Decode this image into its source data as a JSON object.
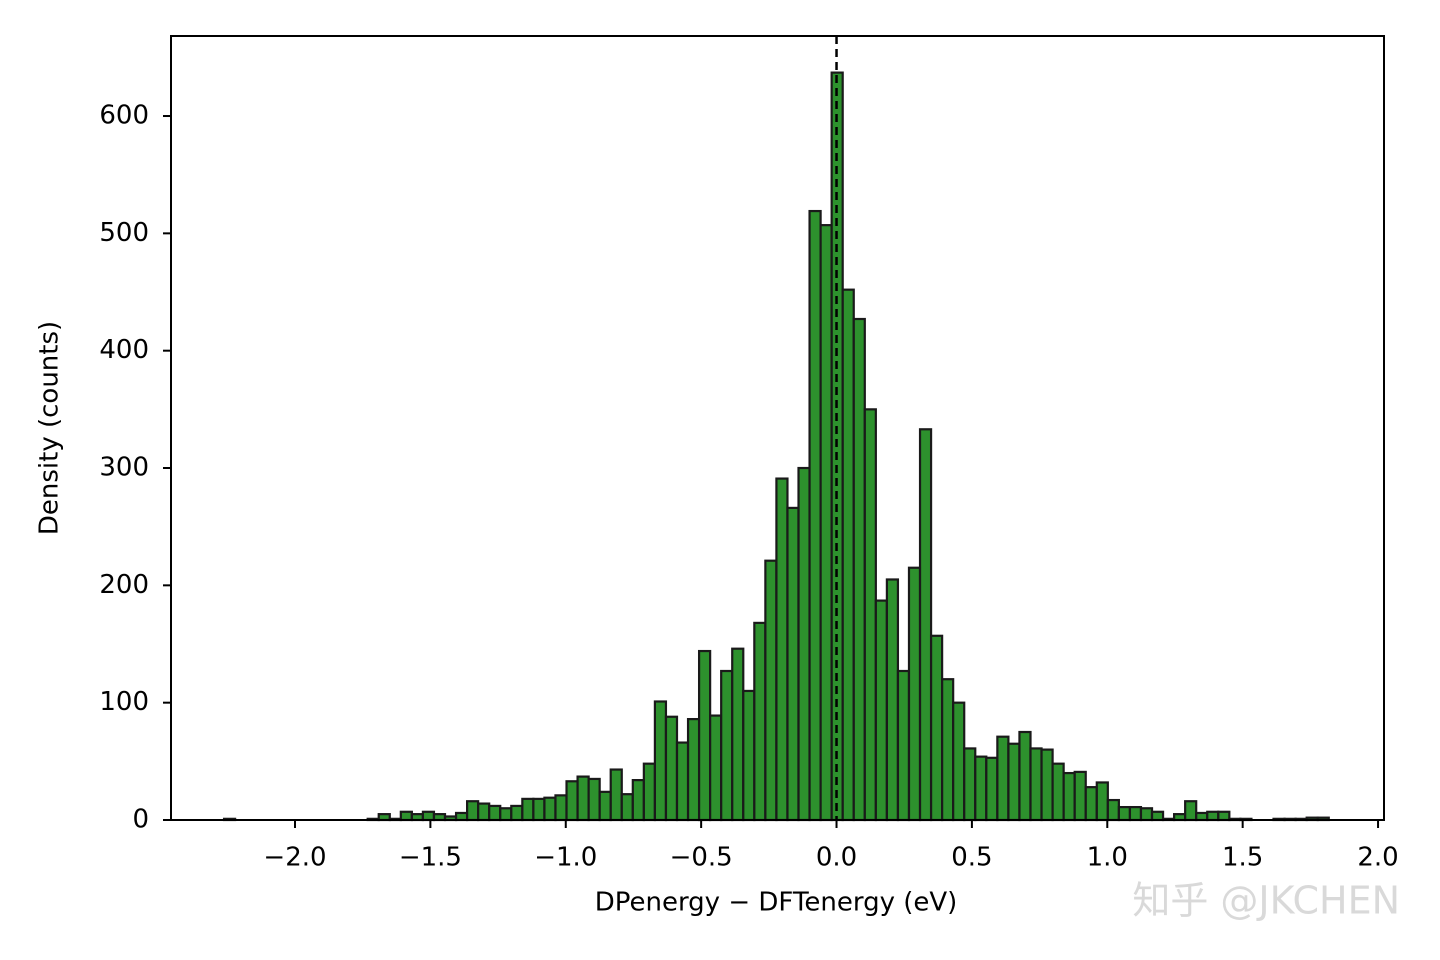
{
  "chart_data": {
    "type": "histogram",
    "xlabel": "DPenergy − DFTenergy (eV)",
    "ylabel": "Density (counts)",
    "watermark": "知乎 @JKCHEN",
    "color": "#228b22",
    "edgecolor": "#1a1a1a",
    "reference_line": {
      "x": 0,
      "style": "dashed",
      "color": "#000000"
    },
    "bins": [
      -2.262,
      -2.2212,
      -2.1804,
      -2.1396,
      -2.0988,
      -2.058,
      -2.0172,
      -1.9764,
      -1.9356,
      -1.8948,
      -1.854,
      -1.8132,
      -1.7724,
      -1.7316,
      -1.6908,
      -1.65,
      -1.6092,
      -1.5684,
      -1.5276,
      -1.4868,
      -1.446,
      -1.4052,
      -1.3644,
      -1.3236,
      -1.2828,
      -1.242,
      -1.2012,
      -1.1604,
      -1.1196,
      -1.0788,
      -1.038,
      -0.9972,
      -0.9564,
      -0.9156,
      -0.8748,
      -0.834,
      -0.7932,
      -0.7524,
      -0.7116,
      -0.6708,
      -0.63,
      -0.5892,
      -0.5484,
      -0.5076,
      -0.4668,
      -0.426,
      -0.3852,
      -0.3444,
      -0.3036,
      -0.2628,
      -0.222,
      -0.1812,
      -0.1404,
      -0.0996,
      -0.0588,
      -0.018,
      0.0228,
      0.0636,
      0.1044,
      0.1452,
      0.186,
      0.2268,
      0.2676,
      0.3084,
      0.3492,
      0.39,
      0.4308,
      0.4716,
      0.5124,
      0.5532,
      0.594,
      0.6348,
      0.6756,
      0.7164,
      0.7572,
      0.798,
      0.8388,
      0.8796,
      0.9204,
      0.9612,
      1.002,
      1.0428,
      1.0836,
      1.1244,
      1.1652,
      1.206,
      1.2468,
      1.2876,
      1.3284,
      1.3692,
      1.41,
      1.4508,
      1.4916,
      1.5324,
      1.5732,
      1.614,
      1.6548,
      1.6956,
      1.7364,
      1.7772,
      1.818
    ],
    "values": [
      1,
      0,
      0,
      0,
      0,
      0,
      0,
      0,
      0,
      0,
      0,
      0,
      0,
      1,
      5,
      1,
      7,
      5,
      7,
      5,
      3,
      6,
      16,
      14,
      12,
      10,
      12,
      18,
      18,
      19,
      21,
      33,
      37,
      35,
      24,
      43,
      22,
      34,
      48,
      101,
      88,
      66,
      86,
      144,
      89,
      127,
      146,
      110,
      168,
      221,
      291,
      266,
      300,
      519,
      507,
      637,
      452,
      427,
      350,
      187,
      205,
      127,
      215,
      333,
      157,
      120,
      100,
      61,
      54,
      53,
      71,
      65,
      75,
      61,
      60,
      48,
      40,
      41,
      28,
      32,
      17,
      11,
      11,
      10,
      7,
      1,
      5,
      16,
      6,
      7,
      7,
      1,
      1,
      0,
      0,
      1,
      1,
      1,
      2,
      2
    ],
    "xlim": [
      -2.458,
      2.022
    ],
    "ylim": [
      0,
      668.2
    ],
    "xticks": [
      {
        "value": -2.0,
        "label": "−2.0"
      },
      {
        "value": -1.5,
        "label": "−1.5"
      },
      {
        "value": -1.0,
        "label": "−1.0"
      },
      {
        "value": -0.5,
        "label": "−0.5"
      },
      {
        "value": 0.0,
        "label": "0.0"
      },
      {
        "value": 0.5,
        "label": "0.5"
      },
      {
        "value": 1.0,
        "label": "1.0"
      },
      {
        "value": 1.5,
        "label": "1.5"
      },
      {
        "value": 2.0,
        "label": "2.0"
      }
    ],
    "yticks": [
      0,
      100,
      200,
      300,
      400,
      500,
      600
    ],
    "grid": false
  }
}
